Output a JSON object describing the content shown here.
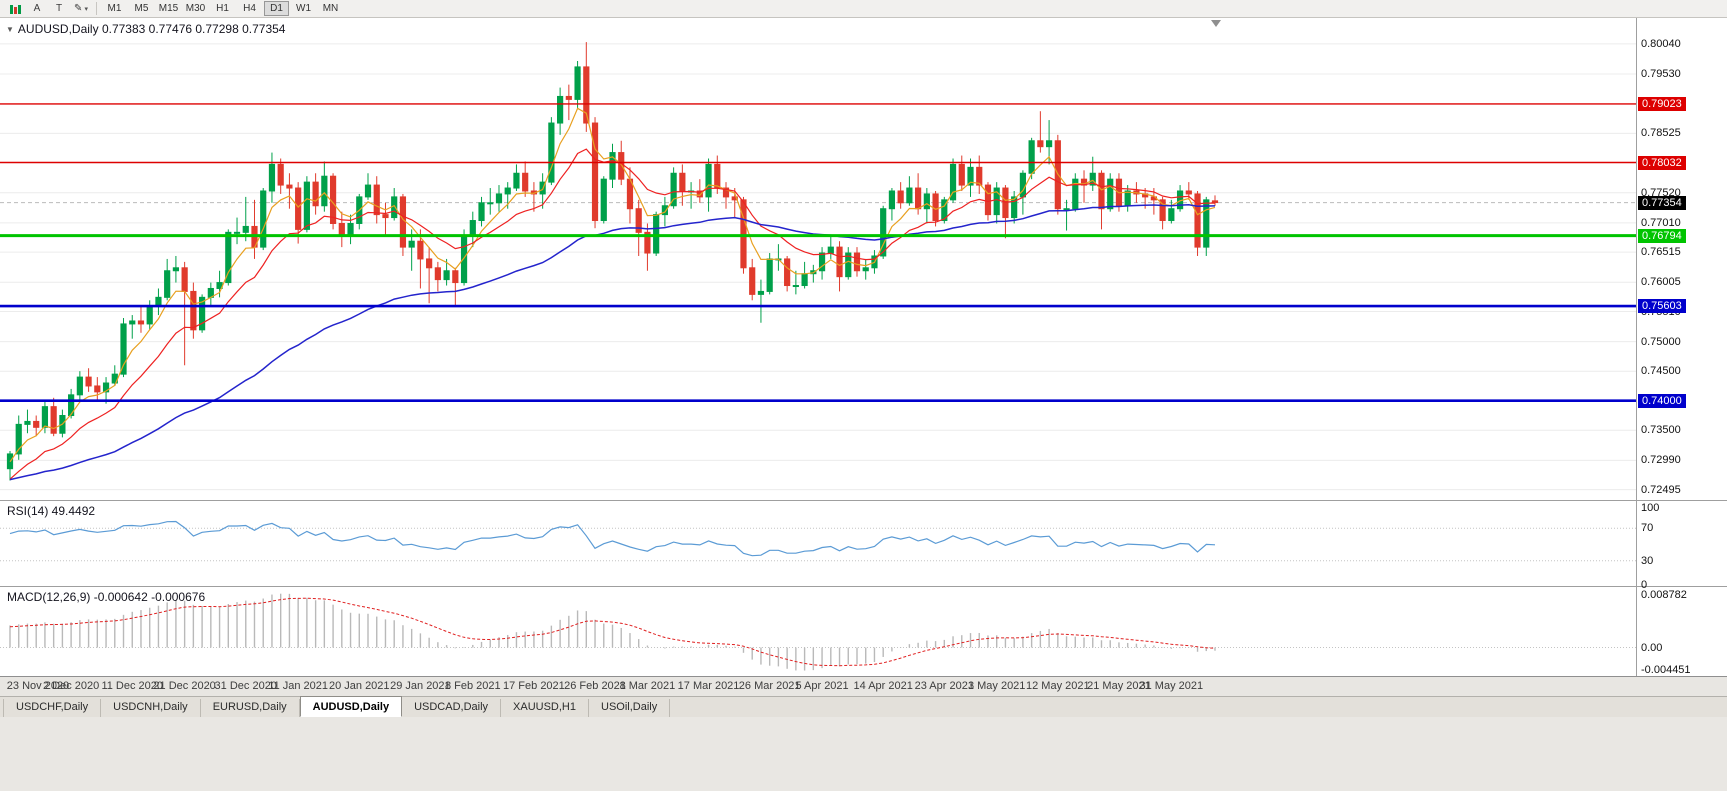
{
  "toolbar": {
    "icons": [
      {
        "name": "chart-type-icon",
        "glyph": ""
      },
      {
        "name": "cursor-annotation-icon",
        "glyph": "A"
      },
      {
        "name": "text-label-icon",
        "glyph": "T"
      },
      {
        "name": "draw-tools-icon",
        "glyph": "✎"
      }
    ],
    "timeframes": [
      "M1",
      "M5",
      "M15",
      "M30",
      "H1",
      "H4",
      "D1",
      "W1",
      "MN"
    ],
    "active_timeframe": "D1"
  },
  "chart": {
    "title": "AUDUSD,Daily",
    "ohlc": "0.77383 0.77476 0.77298 0.77354"
  },
  "price_axis": {
    "ticks": [
      "0.80040",
      "0.79530",
      "0.78525",
      "0.77520",
      "0.77010",
      "0.76515",
      "0.76005",
      "0.75510",
      "0.75000",
      "0.74500",
      "0.73500",
      "0.72990",
      "0.72495"
    ],
    "current": {
      "value": "0.77354",
      "badge_color": "#000000"
    }
  },
  "levels": [
    {
      "label": "0.79023",
      "price": 0.79023,
      "color": "#dd0000",
      "line_width": 1.4
    },
    {
      "label": "0.78032",
      "price": 0.78032,
      "color": "#dd0000",
      "line_width": 1.4
    },
    {
      "label": "0.76794",
      "price": 0.76794,
      "color": "#00c400",
      "line_width": 3
    },
    {
      "label": "0.75603",
      "price": 0.75603,
      "color": "#0000cc",
      "line_width": 2.6
    },
    {
      "label": "0.74000",
      "price": 0.74,
      "color": "#0000cc",
      "line_width": 2.6
    }
  ],
  "rsi_panel": {
    "title": "RSI(14) 49.4492",
    "axis_labels": [
      {
        "text": "100",
        "value": 100
      },
      {
        "text": "70",
        "value": 70
      },
      {
        "text": "30",
        "value": 30
      },
      {
        "text": "0",
        "value": 0
      }
    ]
  },
  "macd_panel": {
    "title": "MACD(12,26,9) -0.000642 -0.000676",
    "axis_top": "0.008782",
    "axis_zero": "0.00",
    "axis_bottom": "-0.004451"
  },
  "tabs": {
    "items": [
      "USDCHF,Daily",
      "USDCNH,Daily",
      "EURUSD,Daily",
      "AUDUSD,Daily",
      "USDCAD,Daily",
      "XAUUSD,H1",
      "USOil,Daily"
    ],
    "active": "AUDUSD,Daily"
  },
  "chart_data": {
    "type": "candlestick",
    "symbol": "AUDUSD",
    "timeframe": "Daily",
    "title": "AUDUSD,Daily 0.77383 0.77476 0.77298 0.77354",
    "price_range": [
      0.7232,
      0.8041
    ],
    "colors": {
      "up": "#00a04a",
      "down": "#e03a2c"
    },
    "x_labels": [
      {
        "t": "23 Nov 2020",
        "i": 0
      },
      {
        "t": "2 Dec 2020",
        "i": 7
      },
      {
        "t": "11 Dec 2020",
        "i": 14
      },
      {
        "t": "21 Dec 2020",
        "i": 20
      },
      {
        "t": "31 Dec 2020",
        "i": 27
      },
      {
        "t": "11 Jan 2021",
        "i": 33
      },
      {
        "t": "20 Jan 2021",
        "i": 40
      },
      {
        "t": "29 Jan 2021",
        "i": 47
      },
      {
        "t": "8 Feb 2021",
        "i": 53
      },
      {
        "t": "17 Feb 2021",
        "i": 60
      },
      {
        "t": "26 Feb 2021",
        "i": 67
      },
      {
        "t": "8 Mar 2021",
        "i": 73
      },
      {
        "t": "17 Mar 2021",
        "i": 80
      },
      {
        "t": "26 Mar 2021",
        "i": 87
      },
      {
        "t": "5 Apr 2021",
        "i": 93
      },
      {
        "t": "14 Apr 2021",
        "i": 100
      },
      {
        "t": "23 Apr 2021",
        "i": 107
      },
      {
        "t": "3 May 2021",
        "i": 113
      },
      {
        "t": "12 May 2021",
        "i": 120
      },
      {
        "t": "21 May 2021",
        "i": 127
      },
      {
        "t": "31 May 2021",
        "i": 133
      }
    ],
    "candles": [
      [
        0.7285,
        0.7315,
        0.7265,
        0.731
      ],
      [
        0.731,
        0.7375,
        0.73,
        0.736
      ],
      [
        0.736,
        0.7385,
        0.7345,
        0.7365
      ],
      [
        0.7365,
        0.7375,
        0.734,
        0.7355
      ],
      [
        0.7355,
        0.74,
        0.7345,
        0.739
      ],
      [
        0.739,
        0.7405,
        0.734,
        0.7345
      ],
      [
        0.7345,
        0.7385,
        0.7338,
        0.7375
      ],
      [
        0.7375,
        0.742,
        0.737,
        0.741
      ],
      [
        0.741,
        0.745,
        0.74,
        0.744
      ],
      [
        0.744,
        0.7455,
        0.7415,
        0.7425
      ],
      [
        0.7425,
        0.744,
        0.74,
        0.7415
      ],
      [
        0.7415,
        0.744,
        0.7395,
        0.743
      ],
      [
        0.743,
        0.746,
        0.7425,
        0.7445
      ],
      [
        0.7445,
        0.754,
        0.744,
        0.753
      ],
      [
        0.753,
        0.7545,
        0.7505,
        0.7535
      ],
      [
        0.7535,
        0.756,
        0.7515,
        0.753
      ],
      [
        0.753,
        0.757,
        0.752,
        0.756
      ],
      [
        0.756,
        0.759,
        0.7545,
        0.7575
      ],
      [
        0.7575,
        0.764,
        0.757,
        0.762
      ],
      [
        0.762,
        0.7645,
        0.76,
        0.7625
      ],
      [
        0.7625,
        0.7635,
        0.746,
        0.7585
      ],
      [
        0.7585,
        0.76,
        0.7505,
        0.752
      ],
      [
        0.752,
        0.758,
        0.7515,
        0.7575
      ],
      [
        0.7575,
        0.76,
        0.756,
        0.759
      ],
      [
        0.759,
        0.762,
        0.7575,
        0.76
      ],
      [
        0.76,
        0.769,
        0.7595,
        0.7685
      ],
      [
        0.7685,
        0.771,
        0.7665,
        0.7685
      ],
      [
        0.7685,
        0.7745,
        0.767,
        0.7695
      ],
      [
        0.7695,
        0.774,
        0.764,
        0.766
      ],
      [
        0.766,
        0.776,
        0.7655,
        0.7755
      ],
      [
        0.7755,
        0.782,
        0.7735,
        0.78
      ],
      [
        0.78,
        0.781,
        0.775,
        0.7765
      ],
      [
        0.7765,
        0.7785,
        0.7725,
        0.776
      ],
      [
        0.776,
        0.777,
        0.7666,
        0.769
      ],
      [
        0.769,
        0.778,
        0.7685,
        0.777
      ],
      [
        0.777,
        0.7785,
        0.7715,
        0.773
      ],
      [
        0.773,
        0.7805,
        0.772,
        0.778
      ],
      [
        0.778,
        0.7785,
        0.769,
        0.77
      ],
      [
        0.77,
        0.772,
        0.766,
        0.768
      ],
      [
        0.768,
        0.7715,
        0.7665,
        0.77
      ],
      [
        0.77,
        0.775,
        0.769,
        0.7745
      ],
      [
        0.7745,
        0.7785,
        0.774,
        0.7765
      ],
      [
        0.7765,
        0.778,
        0.77,
        0.7715
      ],
      [
        0.7715,
        0.7735,
        0.768,
        0.771
      ],
      [
        0.771,
        0.776,
        0.7705,
        0.7745
      ],
      [
        0.7745,
        0.775,
        0.7645,
        0.766
      ],
      [
        0.766,
        0.769,
        0.762,
        0.767
      ],
      [
        0.767,
        0.769,
        0.759,
        0.764
      ],
      [
        0.764,
        0.766,
        0.7565,
        0.7625
      ],
      [
        0.7625,
        0.7635,
        0.7585,
        0.7605
      ],
      [
        0.7605,
        0.764,
        0.7595,
        0.762
      ],
      [
        0.762,
        0.7625,
        0.756,
        0.76
      ],
      [
        0.76,
        0.769,
        0.7595,
        0.768
      ],
      [
        0.768,
        0.772,
        0.766,
        0.7705
      ],
      [
        0.7705,
        0.7745,
        0.7695,
        0.7735
      ],
      [
        0.7735,
        0.776,
        0.7715,
        0.7735
      ],
      [
        0.7735,
        0.7765,
        0.772,
        0.775
      ],
      [
        0.775,
        0.777,
        0.7725,
        0.776
      ],
      [
        0.776,
        0.78,
        0.7755,
        0.7785
      ],
      [
        0.7785,
        0.7805,
        0.7745,
        0.7755
      ],
      [
        0.7755,
        0.777,
        0.772,
        0.775
      ],
      [
        0.775,
        0.7785,
        0.7725,
        0.777
      ],
      [
        0.777,
        0.788,
        0.7765,
        0.787
      ],
      [
        0.787,
        0.793,
        0.785,
        0.7915
      ],
      [
        0.7915,
        0.7935,
        0.7875,
        0.791
      ],
      [
        0.791,
        0.7975,
        0.7895,
        0.7965
      ],
      [
        0.7965,
        0.8007,
        0.7855,
        0.787
      ],
      [
        0.787,
        0.788,
        0.7692,
        0.7705
      ],
      [
        0.7705,
        0.778,
        0.77,
        0.7775
      ],
      [
        0.7775,
        0.7835,
        0.776,
        0.782
      ],
      [
        0.782,
        0.784,
        0.7765,
        0.7775
      ],
      [
        0.7775,
        0.7795,
        0.77,
        0.7725
      ],
      [
        0.7725,
        0.774,
        0.7645,
        0.7685
      ],
      [
        0.7685,
        0.77,
        0.762,
        0.765
      ],
      [
        0.765,
        0.772,
        0.7645,
        0.7715
      ],
      [
        0.7715,
        0.7745,
        0.7695,
        0.773
      ],
      [
        0.773,
        0.7795,
        0.7725,
        0.7785
      ],
      [
        0.7785,
        0.78,
        0.773,
        0.7755
      ],
      [
        0.7755,
        0.777,
        0.7725,
        0.7755
      ],
      [
        0.7755,
        0.7775,
        0.7735,
        0.7745
      ],
      [
        0.7745,
        0.781,
        0.772,
        0.78
      ],
      [
        0.78,
        0.7815,
        0.775,
        0.776
      ],
      [
        0.776,
        0.777,
        0.7725,
        0.7745
      ],
      [
        0.7745,
        0.776,
        0.771,
        0.774
      ],
      [
        0.774,
        0.7745,
        0.7615,
        0.7625
      ],
      [
        0.7625,
        0.764,
        0.757,
        0.758
      ],
      [
        0.758,
        0.7605,
        0.7532,
        0.7585
      ],
      [
        0.7585,
        0.765,
        0.758,
        0.764
      ],
      [
        0.764,
        0.7665,
        0.762,
        0.764
      ],
      [
        0.764,
        0.7645,
        0.7585,
        0.7595
      ],
      [
        0.7595,
        0.762,
        0.758,
        0.7595
      ],
      [
        0.7595,
        0.7635,
        0.759,
        0.7615
      ],
      [
        0.7615,
        0.763,
        0.76,
        0.762
      ],
      [
        0.762,
        0.766,
        0.7605,
        0.765
      ],
      [
        0.765,
        0.768,
        0.764,
        0.766
      ],
      [
        0.766,
        0.767,
        0.7585,
        0.761
      ],
      [
        0.761,
        0.766,
        0.7605,
        0.765
      ],
      [
        0.765,
        0.766,
        0.761,
        0.762
      ],
      [
        0.762,
        0.764,
        0.7605,
        0.7625
      ],
      [
        0.7625,
        0.7655,
        0.7615,
        0.7645
      ],
      [
        0.7645,
        0.773,
        0.764,
        0.7725
      ],
      [
        0.7725,
        0.776,
        0.7705,
        0.7755
      ],
      [
        0.7755,
        0.777,
        0.7725,
        0.7735
      ],
      [
        0.7735,
        0.778,
        0.773,
        0.776
      ],
      [
        0.776,
        0.7785,
        0.7715,
        0.7725
      ],
      [
        0.7725,
        0.776,
        0.77,
        0.775
      ],
      [
        0.775,
        0.7755,
        0.7695,
        0.7705
      ],
      [
        0.7705,
        0.7745,
        0.77,
        0.774
      ],
      [
        0.774,
        0.781,
        0.7735,
        0.78
      ],
      [
        0.78,
        0.7815,
        0.7755,
        0.7765
      ],
      [
        0.7765,
        0.781,
        0.7745,
        0.7795
      ],
      [
        0.7795,
        0.7815,
        0.775,
        0.7765
      ],
      [
        0.7765,
        0.777,
        0.7705,
        0.7715
      ],
      [
        0.7715,
        0.777,
        0.77,
        0.776
      ],
      [
        0.776,
        0.7765,
        0.7675,
        0.771
      ],
      [
        0.771,
        0.7755,
        0.77,
        0.7745
      ],
      [
        0.7745,
        0.779,
        0.7715,
        0.7785
      ],
      [
        0.7785,
        0.7845,
        0.7775,
        0.784
      ],
      [
        0.784,
        0.789,
        0.782,
        0.783
      ],
      [
        0.783,
        0.7875,
        0.78,
        0.784
      ],
      [
        0.784,
        0.785,
        0.7715,
        0.7725
      ],
      [
        0.7725,
        0.774,
        0.7688,
        0.7725
      ],
      [
        0.7725,
        0.7785,
        0.772,
        0.7775
      ],
      [
        0.7775,
        0.779,
        0.7735,
        0.7765
      ],
      [
        0.7765,
        0.7813,
        0.7755,
        0.7785
      ],
      [
        0.7785,
        0.779,
        0.769,
        0.7725
      ],
      [
        0.7725,
        0.7785,
        0.772,
        0.7775
      ],
      [
        0.7775,
        0.7785,
        0.772,
        0.773
      ],
      [
        0.773,
        0.7765,
        0.772,
        0.7755
      ],
      [
        0.7755,
        0.777,
        0.7735,
        0.775
      ],
      [
        0.775,
        0.776,
        0.7725,
        0.7745
      ],
      [
        0.7745,
        0.776,
        0.7715,
        0.774
      ],
      [
        0.774,
        0.7745,
        0.769,
        0.7705
      ],
      [
        0.7705,
        0.774,
        0.77,
        0.7725
      ],
      [
        0.7725,
        0.7765,
        0.772,
        0.7755
      ],
      [
        0.7755,
        0.777,
        0.774,
        0.775
      ],
      [
        0.775,
        0.7755,
        0.7645,
        0.766
      ],
      [
        0.766,
        0.7745,
        0.7645,
        0.774
      ],
      [
        0.77383,
        0.77476,
        0.77298,
        0.77354
      ]
    ],
    "moving_averages": [
      {
        "name": "ma-fast",
        "period": 5,
        "seed": 0.729,
        "color": "#e8a020",
        "width": 1.2
      },
      {
        "name": "ma-mid",
        "period": 13,
        "seed": 0.726,
        "color": "#ee2222",
        "width": 1.2
      },
      {
        "name": "ma-slow",
        "period": 55,
        "seed": 0.7265,
        "color": "#2424cc",
        "width": 1.5
      }
    ],
    "indicators": {
      "rsi": {
        "period": 14,
        "current": 49.4492,
        "color": "#5b9bd5",
        "levels": [
          70,
          30
        ],
        "seed_gain": 0.0026,
        "seed_loss": 0.0015
      },
      "macd": {
        "fast": 12,
        "slow": 26,
        "signal": 9,
        "current_main": -0.000642,
        "current_signal": -0.000676,
        "histogram_color": "#b9b9b9",
        "signal_color": "#e02020",
        "seeds": {
          "ema_fast": 0.73,
          "ema_slow": 0.726,
          "signal": 0.0035
        }
      }
    }
  }
}
